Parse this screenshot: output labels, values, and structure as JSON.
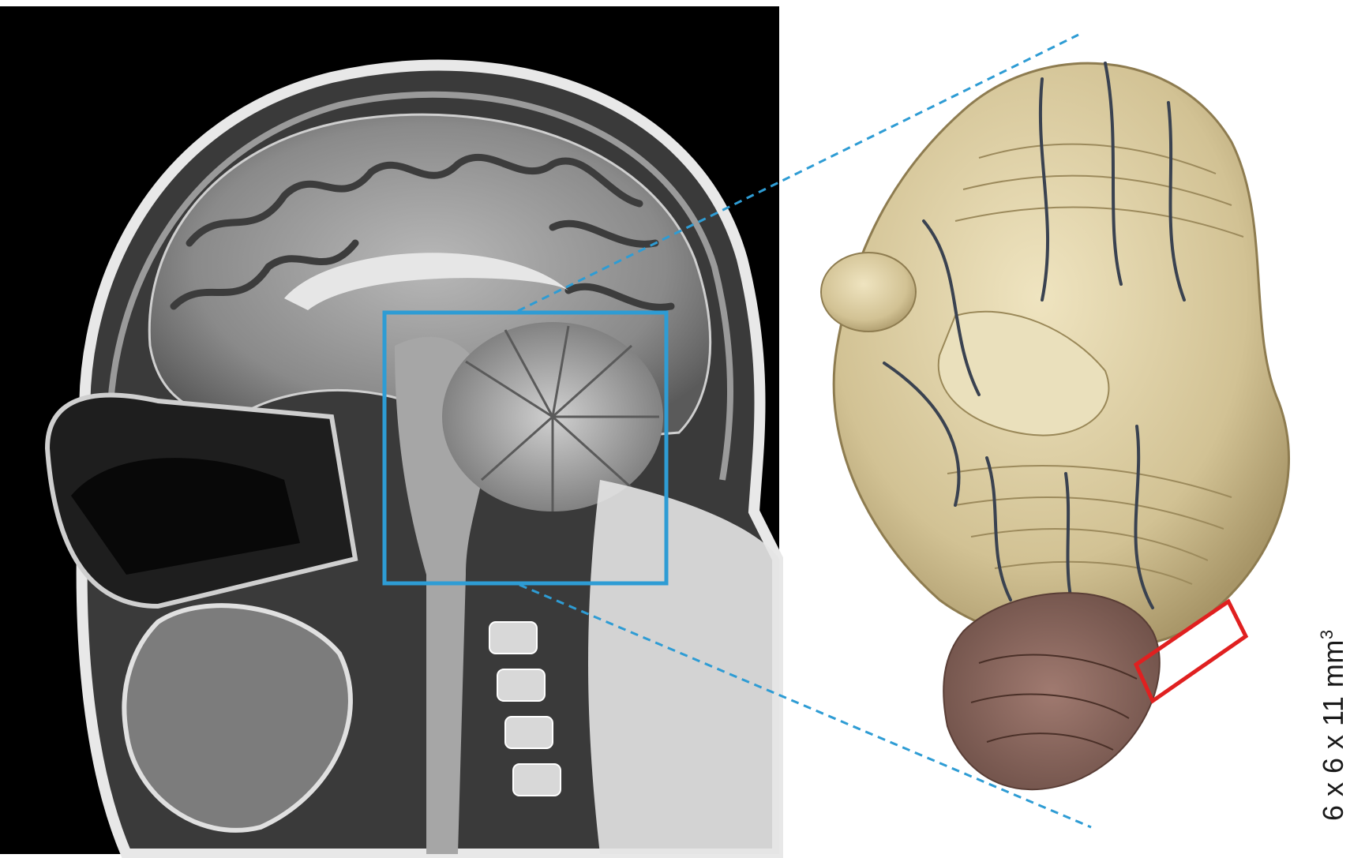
{
  "figure": {
    "left_panel": {
      "type": "sagittal MRI of head",
      "background": "#000000"
    },
    "right_panel": {
      "type": "photograph of brainstem and cerebellum specimen"
    },
    "colors": {
      "roi_box": "#2e9cd4",
      "sample_box": "#e02020",
      "connector_lines": "#2e9cd4",
      "tissue": "#d8c89a",
      "vessels": "#3a4250"
    },
    "size_label": {
      "prefix": "6 x 6 x 11 mm",
      "superscript": "3"
    }
  }
}
